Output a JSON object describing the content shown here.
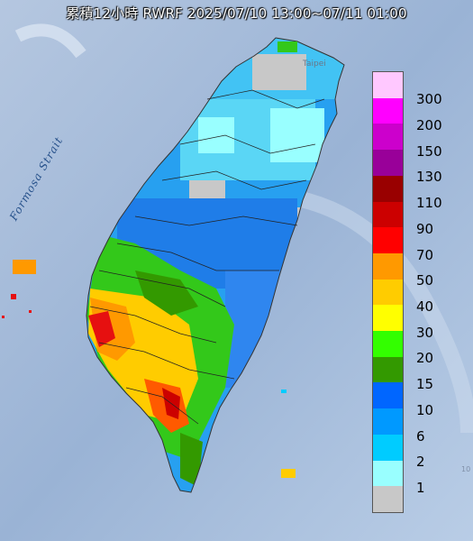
{
  "header": {
    "title": "累積12小時 RWRF 2025/07/10 13:00~07/11 01:00"
  },
  "map": {
    "strait_label": "Formosa Strait",
    "city_label": "Taipei",
    "corner_label": "10"
  },
  "legend": {
    "items": [
      {
        "label": "300",
        "color": "#ffc8ff"
      },
      {
        "label": "200",
        "color": "#ff00ff"
      },
      {
        "label": "150",
        "color": "#cc00cc"
      },
      {
        "label": "130",
        "color": "#990099"
      },
      {
        "label": "110",
        "color": "#990000"
      },
      {
        "label": "90",
        "color": "#cc0000"
      },
      {
        "label": "70",
        "color": "#ff0000"
      },
      {
        "label": "50",
        "color": "#ff9900"
      },
      {
        "label": "40",
        "color": "#ffcc00"
      },
      {
        "label": "30",
        "color": "#ffff00"
      },
      {
        "label": "20",
        "color": "#33ff00"
      },
      {
        "label": "15",
        "color": "#339900"
      },
      {
        "label": "10",
        "color": "#0066ff"
      },
      {
        "label": "6",
        "color": "#0099ff"
      },
      {
        "label": "2",
        "color": "#00ccff"
      },
      {
        "label": "1",
        "color": "#99ffff"
      },
      {
        "label": "",
        "color": "#c8c8c8"
      }
    ]
  }
}
